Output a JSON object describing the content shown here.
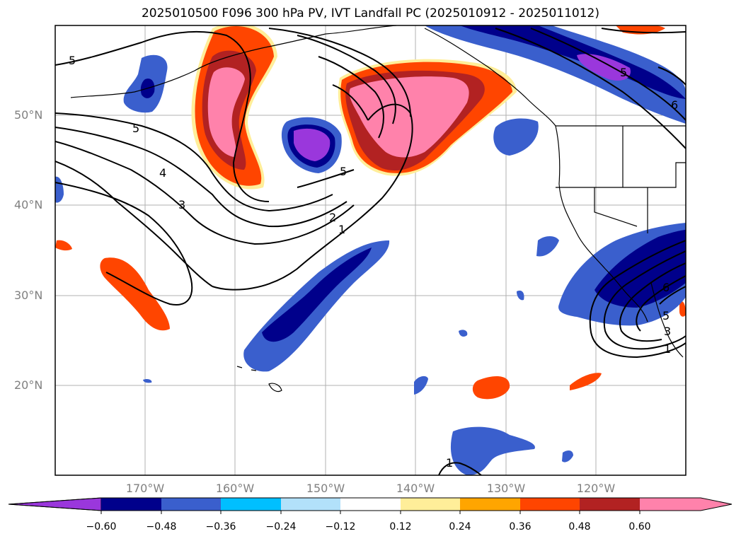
{
  "title": "2025010500 F096 300 hPa PV, IVT Landfall PC (2025010912 - 2025011012)",
  "lat_labels": [
    "50°N",
    "40°N",
    "30°N",
    "20°N"
  ],
  "lon_labels": [
    "170°W",
    "160°W",
    "150°W",
    "140°W",
    "130°W",
    "120°W"
  ],
  "colorbar": {
    "ticks": [
      "−0.60",
      "−0.48",
      "−0.36",
      "−0.24",
      "−0.12",
      "0.12",
      "0.24",
      "0.36",
      "0.48",
      "0.60"
    ],
    "colors": [
      "#9a37dc",
      "#00008b",
      "#3a5fcd",
      "#00bfff",
      "#b2e1fa",
      "#ffffff",
      "#ffee99",
      "#ffa500",
      "#ff4500",
      "#b22222",
      "#ff82ab"
    ]
  },
  "contour_labels": [
    "5",
    "5",
    "4",
    "3",
    "2",
    "1",
    "5",
    "5",
    "6",
    "6",
    "5",
    "3",
    "1",
    "1"
  ]
}
